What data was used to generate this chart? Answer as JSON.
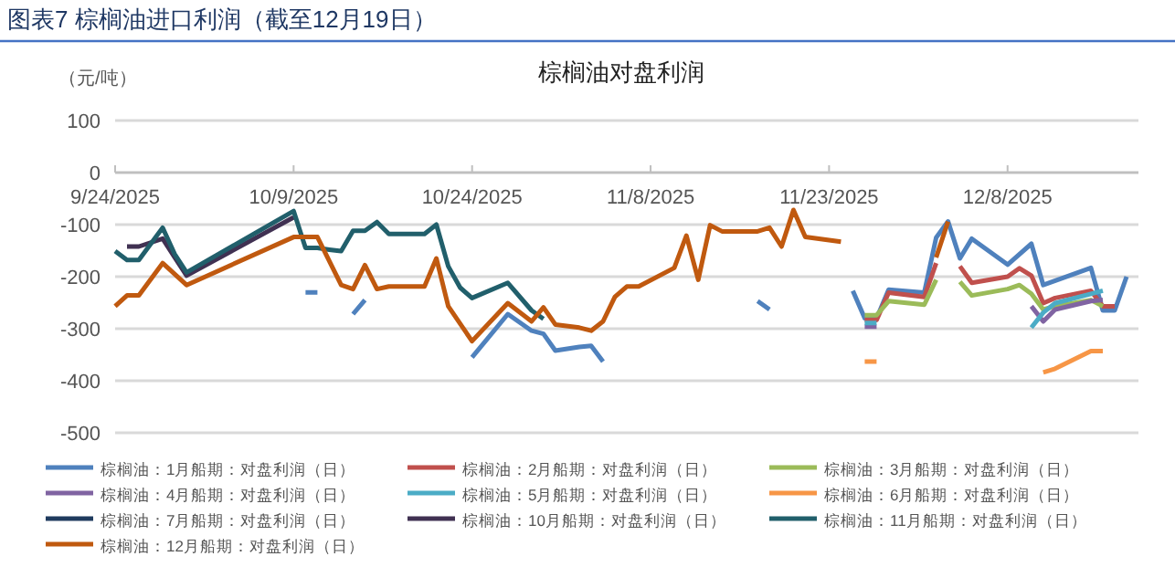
{
  "chart_data": {
    "type": "line",
    "title": "棕榈油对盘利润",
    "ylabel": "（元/吨）",
    "annotations": [
      "图表7 棕榈油进口利润（截至12月19日）"
    ],
    "xlim": [
      "2025-09-24",
      "2025-12-19"
    ],
    "xticks": [
      {
        "value": "2025-09-24",
        "label": "9/24/2025"
      },
      {
        "value": "2025-10-09",
        "label": "10/9/2025"
      },
      {
        "value": "2025-10-24",
        "label": "10/24/2025"
      },
      {
        "value": "2025-11-08",
        "label": "11/8/2025"
      },
      {
        "value": "2025-11-23",
        "label": "11/23/2025"
      },
      {
        "value": "2025-12-08",
        "label": "12/8/2025"
      }
    ],
    "ylim": [
      -500,
      100
    ],
    "yticks": [
      -500,
      -400,
      -300,
      -200,
      -100,
      0,
      100
    ],
    "grid": "y",
    "legend": "bottom",
    "line_style": "solid",
    "series": [
      {
        "name": "棕榈油：1月船期：对盘利润（日）",
        "color": "#4f81bd",
        "x": [
          "2025-10-10",
          "2025-10-11",
          "2025-10-12",
          "2025-10-14",
          "2025-10-15",
          "2025-10-20",
          "2025-10-24",
          "2025-10-27",
          "2025-10-29",
          "2025-10-30",
          "2025-10-31",
          "2025-11-02",
          "2025-11-03",
          "2025-11-04",
          "2025-11-10",
          "2025-11-17",
          "2025-11-18",
          "2025-11-21",
          "2025-11-25",
          "2025-11-26",
          "2025-11-27",
          "2025-11-28",
          "2025-12-01",
          "2025-12-02",
          "2025-12-03",
          "2025-12-04",
          "2025-12-05",
          "2025-12-08",
          "2025-12-10",
          "2025-12-11",
          "2025-12-15",
          "2025-12-16",
          "2025-12-17",
          "2025-12-18"
        ],
        "values": [
          -230,
          -230,
          null,
          -272,
          -245,
          null,
          -355,
          -272,
          -304,
          -310,
          -342,
          -335,
          -333,
          -363,
          null,
          -247,
          -263,
          null,
          -227,
          -280,
          -280,
          -225,
          -231,
          -125,
          -94,
          -165,
          -127,
          -177,
          -137,
          -216,
          -183,
          -265,
          -265,
          -200
        ]
      },
      {
        "name": "棕榈油：2月船期：对盘利润（日）",
        "color": "#c0504d",
        "x": [
          "2025-11-26",
          "2025-11-27",
          "2025-11-28",
          "2025-12-01",
          "2025-12-02",
          "2025-12-03",
          "2025-12-04",
          "2025-12-05",
          "2025-12-08",
          "2025-12-09",
          "2025-12-10",
          "2025-12-11",
          "2025-12-12",
          "2025-12-15",
          "2025-12-16",
          "2025-12-17"
        ],
        "values": [
          -283,
          -283,
          -231,
          -239,
          -174,
          null,
          -180,
          -212,
          -200,
          -184,
          -198,
          -251,
          -241,
          -227,
          -257,
          -257
        ]
      },
      {
        "name": "棕榈油：3月船期：对盘利润（日）",
        "color": "#9bbb59",
        "x": [
          "2025-11-26",
          "2025-11-27",
          "2025-11-28",
          "2025-12-01",
          "2025-12-02",
          "2025-12-03",
          "2025-12-04",
          "2025-12-05",
          "2025-12-08",
          "2025-12-09",
          "2025-12-10",
          "2025-12-11",
          "2025-12-12",
          "2025-12-15",
          "2025-12-16"
        ],
        "values": [
          -274,
          -274,
          -247,
          -254,
          -206,
          null,
          -210,
          -236,
          -224,
          -216,
          -233,
          -263,
          -257,
          -245,
          -257
        ]
      },
      {
        "name": "棕榈油：4月船期：对盘利润（日）",
        "color": "#8064a2",
        "x": [
          "2025-11-26",
          "2025-11-27",
          "2025-12-01",
          "2025-12-10",
          "2025-12-11",
          "2025-12-12",
          "2025-12-15",
          "2025-12-16"
        ],
        "values": [
          -296,
          -296,
          null,
          -257,
          -286,
          -263,
          -247,
          -245
        ]
      },
      {
        "name": "棕榈油：5月船期：对盘利润（日）",
        "color": "#4bacc6",
        "x": [
          "2025-11-26",
          "2025-11-27",
          "2025-12-01",
          "2025-12-10",
          "2025-12-11",
          "2025-12-12",
          "2025-12-15",
          "2025-12-16"
        ],
        "values": [
          -289,
          -289,
          null,
          -298,
          -269,
          -251,
          -233,
          -227
        ]
      },
      {
        "name": "棕榈油：6月船期：对盘利润（日）",
        "color": "#f79646",
        "x": [
          "2025-11-26",
          "2025-11-27",
          "2025-12-01",
          "2025-12-11",
          "2025-12-12",
          "2025-12-15",
          "2025-12-16"
        ],
        "values": [
          -363,
          -363,
          null,
          -384,
          -377,
          -343,
          -343
        ]
      },
      {
        "name": "棕榈油：7月船期：对盘利润（日）",
        "color": "#1f3b5e"
      },
      {
        "name": "棕榈油：10月船期：对盘利润（日）",
        "color": "#403152",
        "x": [
          "2025-09-25",
          "2025-09-26",
          "2025-09-28",
          "2025-09-29",
          "2025-09-30",
          "2025-10-09"
        ],
        "values": [
          -142,
          -142,
          -127,
          -163,
          -198,
          -86
        ]
      },
      {
        "name": "棕榈油：11月船期：对盘利润（日）",
        "color": "#215f6b",
        "x": [
          "2025-09-24",
          "2025-09-25",
          "2025-09-26",
          "2025-09-28",
          "2025-09-29",
          "2025-09-30",
          "2025-10-09",
          "2025-10-10",
          "2025-10-11",
          "2025-10-12",
          "2025-10-13",
          "2025-10-14",
          "2025-10-15",
          "2025-10-16",
          "2025-10-17",
          "2025-10-20",
          "2025-10-21",
          "2025-10-22",
          "2025-10-23",
          "2025-10-24",
          "2025-10-27",
          "2025-10-29",
          "2025-10-30"
        ],
        "values": [
          -151,
          -168,
          -168,
          -106,
          -157,
          -192,
          -74,
          -145,
          -145,
          -148,
          -151,
          -112,
          -112,
          -95,
          -118,
          -118,
          -100,
          -180,
          -221,
          -241,
          -212,
          -265,
          -281
        ]
      },
      {
        "name": "棕榈油：12月船期：对盘利润（日）",
        "color": "#c0590f",
        "x": [
          "2025-09-24",
          "2025-09-25",
          "2025-09-26",
          "2025-09-28",
          "2025-09-30",
          "2025-10-09",
          "2025-10-11",
          "2025-10-13",
          "2025-10-14",
          "2025-10-15",
          "2025-10-16",
          "2025-10-17",
          "2025-10-20",
          "2025-10-21",
          "2025-10-22",
          "2025-10-24",
          "2025-10-27",
          "2025-10-29",
          "2025-10-30",
          "2025-10-31",
          "2025-11-02",
          "2025-11-03",
          "2025-11-04",
          "2025-11-05",
          "2025-11-06",
          "2025-11-07",
          "2025-11-10",
          "2025-11-11",
          "2025-11-12",
          "2025-11-13",
          "2025-11-14",
          "2025-11-17",
          "2025-11-18",
          "2025-11-19",
          "2025-11-20",
          "2025-11-21",
          "2025-11-24",
          "2025-11-25",
          "2025-12-02",
          "2025-12-03"
        ],
        "values": [
          -257,
          -236,
          -236,
          -174,
          -216,
          -124,
          -124,
          -216,
          -224,
          -178,
          -224,
          -219,
          -219,
          -165,
          -257,
          -324,
          -251,
          -286,
          -259,
          -292,
          -298,
          -304,
          -286,
          -239,
          -219,
          -219,
          -183,
          -121,
          -206,
          -101,
          -113,
          -113,
          -106,
          -142,
          -72,
          -124,
          -133,
          null,
          -163,
          -94
        ]
      }
    ]
  }
}
